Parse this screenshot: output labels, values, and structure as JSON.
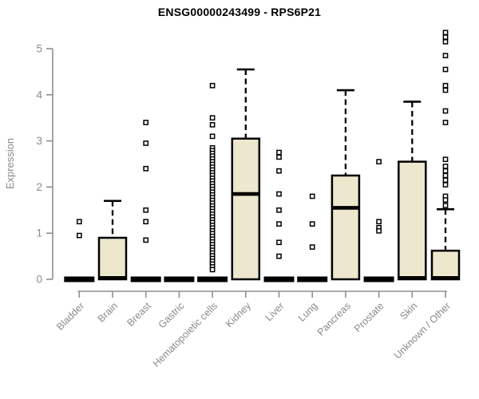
{
  "chart_data": {
    "type": "boxplot",
    "title": "ENSG00000243499 - RPS6P21",
    "ylabel": "Expression",
    "xlabel": "",
    "ylim": [
      0,
      5.4
    ],
    "yticks": [
      0,
      1,
      2,
      3,
      4,
      5
    ],
    "grid": false,
    "legend": "none",
    "x_label_rotation": -45,
    "categories": [
      "Bladder",
      "Brain",
      "Breast",
      "Gastric",
      "Hematopoietic cells",
      "Kidney",
      "Liver",
      "Lung",
      "Pancreas",
      "Prostate",
      "Skin",
      "Unknown / Other"
    ],
    "boxes": [
      {
        "category": "Bladder",
        "q1": 0,
        "median": 0,
        "q3": 0,
        "whisker_low": 0,
        "whisker_high": 0,
        "outliers": [
          1.25,
          0.95
        ]
      },
      {
        "category": "Brain",
        "q1": 0,
        "median": 0.03,
        "q3": 0.9,
        "whisker_low": 0,
        "whisker_high": 1.7,
        "outliers": []
      },
      {
        "category": "Breast",
        "q1": 0,
        "median": 0,
        "q3": 0,
        "whisker_low": 0,
        "whisker_high": 0,
        "outliers": [
          3.4,
          2.95,
          2.4,
          1.5,
          1.25,
          0.85
        ]
      },
      {
        "category": "Gastric",
        "q1": 0,
        "median": 0,
        "q3": 0,
        "whisker_low": 0,
        "whisker_high": 0,
        "outliers": []
      },
      {
        "category": "Hematopoietic cells",
        "q1": 0,
        "median": 0,
        "q3": 0,
        "whisker_low": 0,
        "whisker_high": 0,
        "outliers": [
          4.2,
          3.5,
          3.35,
          3.1,
          2.85,
          2.79,
          2.73,
          2.67,
          2.61,
          2.55,
          2.49,
          2.43,
          2.37,
          2.31,
          2.25,
          2.19,
          2.13,
          2.07,
          2.01,
          1.95,
          1.89,
          1.83,
          1.77,
          1.71,
          1.65,
          1.59,
          1.53,
          1.47,
          1.41,
          1.35,
          1.29,
          1.23,
          1.17,
          1.11,
          1.05,
          0.99,
          0.93,
          0.87,
          0.81,
          0.75,
          0.69,
          0.63,
          0.57,
          0.51,
          0.45,
          0.39,
          0.33,
          0.27,
          0.21
        ]
      },
      {
        "category": "Kidney",
        "q1": 0,
        "median": 1.85,
        "q3": 3.05,
        "whisker_low": 0,
        "whisker_high": 4.55,
        "outliers": []
      },
      {
        "category": "Liver",
        "q1": 0,
        "median": 0,
        "q3": 0,
        "whisker_low": 0,
        "whisker_high": 0,
        "outliers": [
          2.75,
          2.65,
          2.35,
          1.85,
          1.5,
          1.2,
          0.8,
          0.5
        ]
      },
      {
        "category": "Lung",
        "q1": 0,
        "median": 0,
        "q3": 0,
        "whisker_low": 0,
        "whisker_high": 0,
        "outliers": [
          1.8,
          1.2,
          0.7
        ]
      },
      {
        "category": "Pancreas",
        "q1": 0,
        "median": 1.55,
        "q3": 2.25,
        "whisker_low": 0,
        "whisker_high": 4.1,
        "outliers": []
      },
      {
        "category": "Prostate",
        "q1": 0,
        "median": 0,
        "q3": 0,
        "whisker_low": 0,
        "whisker_high": 0,
        "outliers": [
          2.55,
          1.25,
          1.12,
          1.05
        ]
      },
      {
        "category": "Skin",
        "q1": 0,
        "median": 0.03,
        "q3": 2.55,
        "whisker_low": 0,
        "whisker_high": 3.85,
        "outliers": []
      },
      {
        "category": "Unknown / Other",
        "q1": 0,
        "median": 0.03,
        "q3": 0.62,
        "whisker_low": 0,
        "whisker_high": 1.52,
        "outliers": [
          5.35,
          5.25,
          5.15,
          4.85,
          4.55,
          4.2,
          4.1,
          3.65,
          3.4,
          2.6,
          2.45,
          2.35,
          2.25,
          2.15,
          2.05,
          1.8,
          1.72,
          1.6
        ]
      }
    ],
    "colors": {
      "box_fill": "#ece7cd",
      "box_stroke": "#000000",
      "median_color": "#000000",
      "whisker_color": "#000000",
      "outlier_stroke": "#000000",
      "outlier_fill": "#ffffff",
      "axis_color": "#8f8f8f",
      "label_color": "#8a8a8a",
      "title_color": "#000000",
      "background": "#ffffff"
    }
  }
}
